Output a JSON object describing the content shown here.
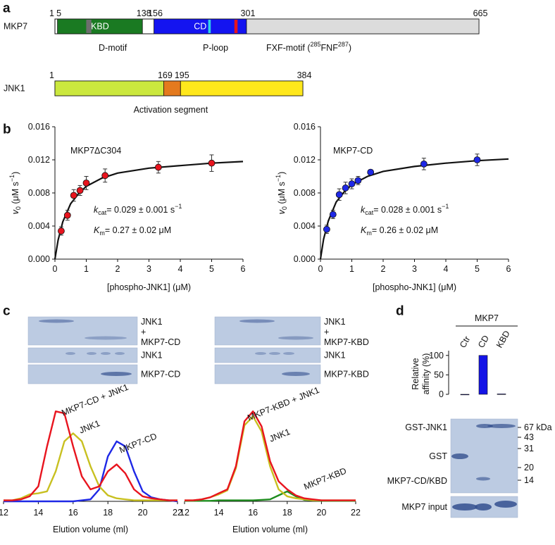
{
  "panel_labels": [
    "a",
    "b",
    "c",
    "d"
  ],
  "domain_maps": [
    {
      "name": "MKP7",
      "range": [
        1,
        665
      ],
      "ticks": [
        1,
        5,
        138,
        156,
        301,
        665
      ],
      "segments": [
        {
          "start": 5,
          "end": 138,
          "color": "#1a7a22",
          "label": "KBD"
        },
        {
          "start": 156,
          "end": 301,
          "color": "#1414f0",
          "label": "CD"
        },
        {
          "start": 301,
          "end": 665,
          "color": "#dcdcdc"
        }
      ],
      "motifs": [
        {
          "start": 50,
          "end": 58,
          "color": "#6e6e6e",
          "label": "D-motif"
        },
        {
          "start": 241,
          "end": 245,
          "color": "#2ed2e6",
          "label": "P-loop"
        },
        {
          "start": 282,
          "end": 287,
          "color": "#e8141e",
          "label": [
            {
              "text": "FXF-motif ("
            },
            {
              "text": "285",
              "style": "sup"
            },
            {
              "text": "FNF"
            },
            {
              "text": "287",
              "style": "sup"
            },
            {
              "text": ")"
            }
          ]
        }
      ]
    },
    {
      "name": "JNK1",
      "range": [
        1,
        384
      ],
      "ticks": [
        1,
        169,
        195,
        384
      ],
      "segments": [
        {
          "start": 1,
          "end": 169,
          "color": "#cbe83e"
        },
        {
          "start": 169,
          "end": 195,
          "color": "#e47a1e"
        },
        {
          "start": 195,
          "end": 384,
          "color": "#ffe81c"
        }
      ],
      "caption": "Activation segment"
    }
  ],
  "chart_data": [
    {
      "type": "scatter",
      "title": "MKP7ΔC304",
      "color": "#e8141e",
      "x": [
        0.2,
        0.4,
        0.6,
        0.8,
        1.0,
        1.6,
        3.3,
        5.0
      ],
      "values": [
        0.0034,
        0.0053,
        0.0077,
        0.0083,
        0.0092,
        0.0101,
        0.0111,
        0.0116
      ],
      "errors": [
        0.0005,
        0.0006,
        0.0007,
        0.0006,
        0.0008,
        0.0008,
        0.0007,
        0.001
      ],
      "fit": {
        "x": [
          0,
          0.1,
          0.25,
          0.5,
          0.75,
          1,
          1.5,
          2,
          3,
          4,
          5,
          6
        ],
        "values": [
          0,
          0.0023,
          0.0045,
          0.0067,
          0.0079,
          0.0088,
          0.0098,
          0.0104,
          0.011,
          0.0113,
          0.0116,
          0.0118
        ]
      },
      "xlim": [
        0,
        6
      ],
      "ylim": [
        0,
        0.016
      ],
      "xticks": [
        0,
        1,
        2,
        3,
        4,
        5,
        6
      ],
      "yticks": [
        {
          "value": 0,
          "label": "0.000"
        },
        0.004,
        0.008,
        0.012,
        0.016
      ],
      "xlabel": "[phospho-JNK1] (μM)",
      "ylabel": [
        {
          "text": "v",
          "style": "italic"
        },
        {
          "text": "0",
          "style": "sub"
        },
        {
          "text": " (μM s"
        },
        {
          "text": "−1",
          "style": "sup"
        },
        {
          "text": ")"
        }
      ],
      "annotations": [
        [
          {
            "text": "k",
            "style": "italic"
          },
          {
            "text": "cat",
            "style": "sub"
          },
          {
            "text": "= 0.029 ± 0.001 s"
          },
          {
            "text": "−1",
            "style": "sup"
          }
        ],
        [
          {
            "text": "K",
            "style": "italic"
          },
          {
            "text": "m",
            "style": "sub"
          },
          {
            "text": "= 0.27 ± 0.02 μM"
          }
        ]
      ]
    },
    {
      "type": "scatter",
      "title": "MKP7-CD",
      "color": "#1e28e6",
      "x": [
        0.2,
        0.4,
        0.6,
        0.8,
        1.0,
        1.2,
        1.6,
        3.3,
        5.0
      ],
      "values": [
        0.0036,
        0.0054,
        0.0078,
        0.0086,
        0.0091,
        0.0095,
        0.0105,
        0.0115,
        0.012
      ],
      "errors": [
        0.0005,
        0.0005,
        0.0007,
        0.0007,
        0.0006,
        0.0005,
        0.0003,
        0.0007,
        0.0007
      ],
      "fit": {
        "x": [
          0,
          0.1,
          0.25,
          0.5,
          0.75,
          1,
          1.5,
          2,
          3,
          4,
          5,
          6
        ],
        "values": [
          0,
          0.0024,
          0.0046,
          0.0069,
          0.0081,
          0.009,
          0.01,
          0.0106,
          0.0112,
          0.0116,
          0.0119,
          0.0121
        ]
      },
      "xlim": [
        0,
        6
      ],
      "ylim": [
        0,
        0.016
      ],
      "xticks": [
        0,
        1,
        2,
        3,
        4,
        5,
        6
      ],
      "yticks": [
        {
          "value": 0,
          "label": "0.000"
        },
        0.004,
        0.008,
        0.012,
        0.016
      ],
      "xlabel": "[phospho-JNK1] (μM)",
      "ylabel": [
        {
          "text": "v",
          "style": "italic"
        },
        {
          "text": "0",
          "style": "sub"
        },
        {
          "text": " (μM s"
        },
        {
          "text": "−1",
          "style": "sup"
        },
        {
          "text": ")"
        }
      ],
      "annotations": [
        [
          {
            "text": "k",
            "style": "italic"
          },
          {
            "text": "cat",
            "style": "sub"
          },
          {
            "text": "= 0.028 ± 0.001 s"
          },
          {
            "text": "−1",
            "style": "sup"
          }
        ],
        [
          {
            "text": "K",
            "style": "italic"
          },
          {
            "text": "m",
            "style": "sub"
          },
          {
            "text": "= 0.26 ± 0.02 μM"
          }
        ]
      ]
    },
    {
      "type": "line",
      "xlabel": "Elution volume (ml)",
      "xlim": [
        12,
        22
      ],
      "ylim": [
        0,
        1
      ],
      "xticks": [
        12,
        14,
        16,
        18,
        20,
        22
      ],
      "x": [
        12,
        12.5,
        13,
        13.5,
        14,
        14.5,
        15,
        15.5,
        16,
        16.5,
        17,
        17.5,
        18,
        18.5,
        19,
        19.5,
        20,
        20.5,
        21,
        21.5,
        22
      ],
      "series": [
        {
          "name": "MKP7-CD + JNK1",
          "color": "#e8141e",
          "values": [
            0.01,
            0.01,
            0.02,
            0.05,
            0.15,
            0.55,
            0.9,
            0.88,
            0.55,
            0.25,
            0.12,
            0.15,
            0.3,
            0.37,
            0.28,
            0.12,
            0.05,
            0.03,
            0.02,
            0.01,
            0.01
          ]
        },
        {
          "name": "JNK1",
          "color": "#c8c020",
          "values": [
            0.01,
            0.01,
            0.03,
            0.07,
            0.08,
            0.1,
            0.3,
            0.6,
            0.68,
            0.6,
            0.35,
            0.15,
            0.06,
            0.03,
            0.02,
            0.01,
            0.01,
            0.01,
            0.01,
            0.01,
            0.01
          ]
        },
        {
          "name": "MKP7-CD",
          "color": "#1e28e6",
          "values": [
            0,
            0,
            0,
            0,
            0,
            0,
            0,
            0,
            0,
            0.01,
            0.02,
            0.12,
            0.45,
            0.6,
            0.55,
            0.3,
            0.1,
            0.04,
            0.02,
            0.01,
            0
          ]
        }
      ]
    },
    {
      "type": "line",
      "xlabel": "Elution volume (ml)",
      "xlim": [
        12,
        22
      ],
      "ylim": [
        0,
        1
      ],
      "xticks": [
        12,
        14,
        16,
        18,
        20,
        22
      ],
      "x": [
        12,
        12.5,
        13,
        13.5,
        14,
        14.5,
        15,
        15.5,
        16,
        16.5,
        17,
        17.5,
        18,
        18.5,
        19,
        19.5,
        20,
        20.5,
        21,
        21.5,
        22
      ],
      "series": [
        {
          "name": "MKP7-KBD + JNK1",
          "color": "#e8141e",
          "values": [
            0.01,
            0.01,
            0.02,
            0.04,
            0.08,
            0.12,
            0.35,
            0.8,
            0.9,
            0.75,
            0.4,
            0.2,
            0.12,
            0.06,
            0.03,
            0.02,
            0.01,
            0.01,
            0.01,
            0.01,
            0.01
          ]
        },
        {
          "name": "JNK1",
          "color": "#c8c020",
          "values": [
            0.01,
            0.01,
            0.02,
            0.04,
            0.07,
            0.11,
            0.33,
            0.76,
            0.85,
            0.7,
            0.35,
            0.12,
            0.05,
            0.03,
            0.02,
            0.01,
            0.01,
            0.01,
            0.01,
            0.01,
            0.01
          ]
        },
        {
          "name": "MKP7-KBD",
          "color": "#1e8c1e",
          "values": [
            0.005,
            0.005,
            0.005,
            0.005,
            0.01,
            0.01,
            0.01,
            0.01,
            0.01,
            0.015,
            0.02,
            0.06,
            0.1,
            0.05,
            0.015,
            0.01,
            0.005,
            0.005,
            0.005,
            0.005,
            0.005
          ]
        }
      ]
    },
    {
      "type": "bar",
      "title": "MKP7",
      "categories": [
        "Ctr",
        "CD",
        "KBD"
      ],
      "values": [
        0,
        100,
        1
      ],
      "color": "#1414e6",
      "ylim": [
        0,
        105
      ],
      "yticks": [
        0,
        50,
        100
      ],
      "ylabel": [
        "Relative",
        "affinity (%)"
      ]
    }
  ],
  "gels": [
    {
      "rows": [
        [
          "JNK1",
          "+",
          "MKP7-CD"
        ],
        [
          "JNK1"
        ],
        [
          "MKP7-CD"
        ]
      ]
    },
    {
      "rows": [
        [
          "JNK1",
          "+",
          "MKP7-KBD"
        ],
        [
          "JNK1"
        ],
        [
          "MKP7-KBD"
        ]
      ]
    },
    {
      "left_labels": [
        "GST-JNK1",
        "GST",
        "MKP7-CD/KBD"
      ],
      "markers": [
        "67 kDa",
        "43",
        "31",
        "20",
        "14"
      ],
      "input_label": "MKP7 input"
    }
  ]
}
